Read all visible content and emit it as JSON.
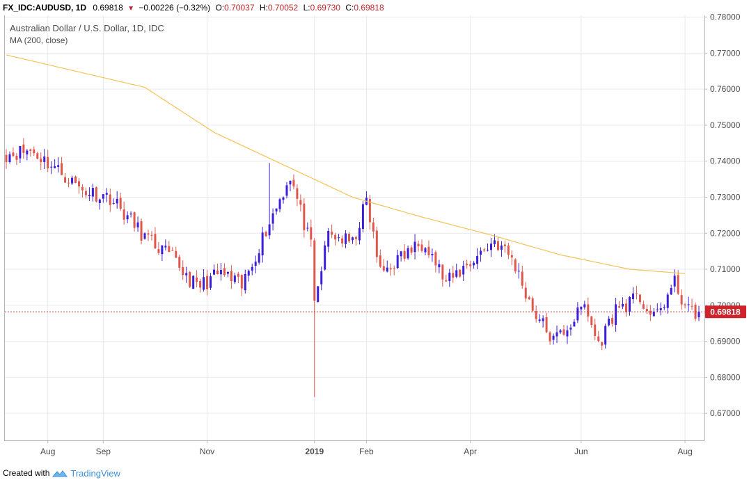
{
  "header": {
    "symbol": "FX_IDC:AUDUSD, 1D",
    "last": "0.69818",
    "change": "−0.00226 (−0.32%)",
    "o_label": "O:",
    "o": "0.70037",
    "h_label": "H:",
    "h": "0.70052",
    "l_label": "L:",
    "l": "0.69730",
    "c_label": "C:",
    "c": "0.69818"
  },
  "legend": {
    "title": "Australian Dollar / U.S. Dollar, 1D, IDC",
    "ma": "MA (200, close)"
  },
  "footer": {
    "created_with": "Created with",
    "brand": "TradingView"
  },
  "colors": {
    "up": "#3b1ddb",
    "down": "#e0564a",
    "ma": "#f5c255",
    "price_line": "#d0222a",
    "grid": "#e6e9ee",
    "axis_text": "#4a4a4a"
  },
  "chart_data": {
    "type": "candlestick",
    "title": "Australian Dollar / U.S. Dollar, 1D, IDC",
    "y_ticks": [
      "0.67000",
      "0.68000",
      "0.69000",
      "0.70000",
      "0.71000",
      "0.72000",
      "0.73000",
      "0.74000",
      "0.75000",
      "0.76000",
      "0.77000",
      "0.78000"
    ],
    "ylim": [
      0.6625,
      0.7805
    ],
    "x_ticks": [
      "Aug",
      "Sep",
      "Nov",
      "2019",
      "Feb",
      "Apr",
      "Jun",
      "Aug"
    ],
    "x_tick_bars": [
      12,
      28,
      58,
      89,
      104,
      134,
      166,
      196
    ],
    "n_bars": 201,
    "last_price": 0.69818,
    "last_price_label": "0.69818",
    "key_points": {
      "bar_index": [
        0,
        7,
        13,
        22,
        30,
        40,
        48,
        55,
        62,
        68,
        75,
        82,
        88,
        89,
        93,
        100,
        104,
        108,
        115,
        121,
        127,
        134,
        141,
        146,
        152,
        158,
        163,
        167,
        171,
        176,
        183,
        187,
        193,
        197
      ],
      "close": [
        0.742,
        0.743,
        0.739,
        0.732,
        0.73,
        0.719,
        0.713,
        0.705,
        0.709,
        0.705,
        0.721,
        0.736,
        0.716,
        0.7,
        0.72,
        0.717,
        0.729,
        0.709,
        0.714,
        0.718,
        0.706,
        0.712,
        0.718,
        0.713,
        0.699,
        0.69,
        0.695,
        0.7,
        0.689,
        0.699,
        0.702,
        0.696,
        0.706,
        0.6982
      ],
      "spike_low": {
        "bar_index": 89,
        "low": 0.6745
      },
      "high_extreme": {
        "bar_index": 76,
        "high": 0.7395
      }
    },
    "ma200": {
      "label": "MA (200, close)",
      "bar_index": [
        0,
        20,
        40,
        60,
        80,
        100,
        120,
        140,
        160,
        180,
        196
      ],
      "value": [
        0.7695,
        0.765,
        0.7605,
        0.748,
        0.739,
        0.73,
        0.7245,
        0.7195,
        0.714,
        0.71,
        0.7088
      ]
    }
  }
}
